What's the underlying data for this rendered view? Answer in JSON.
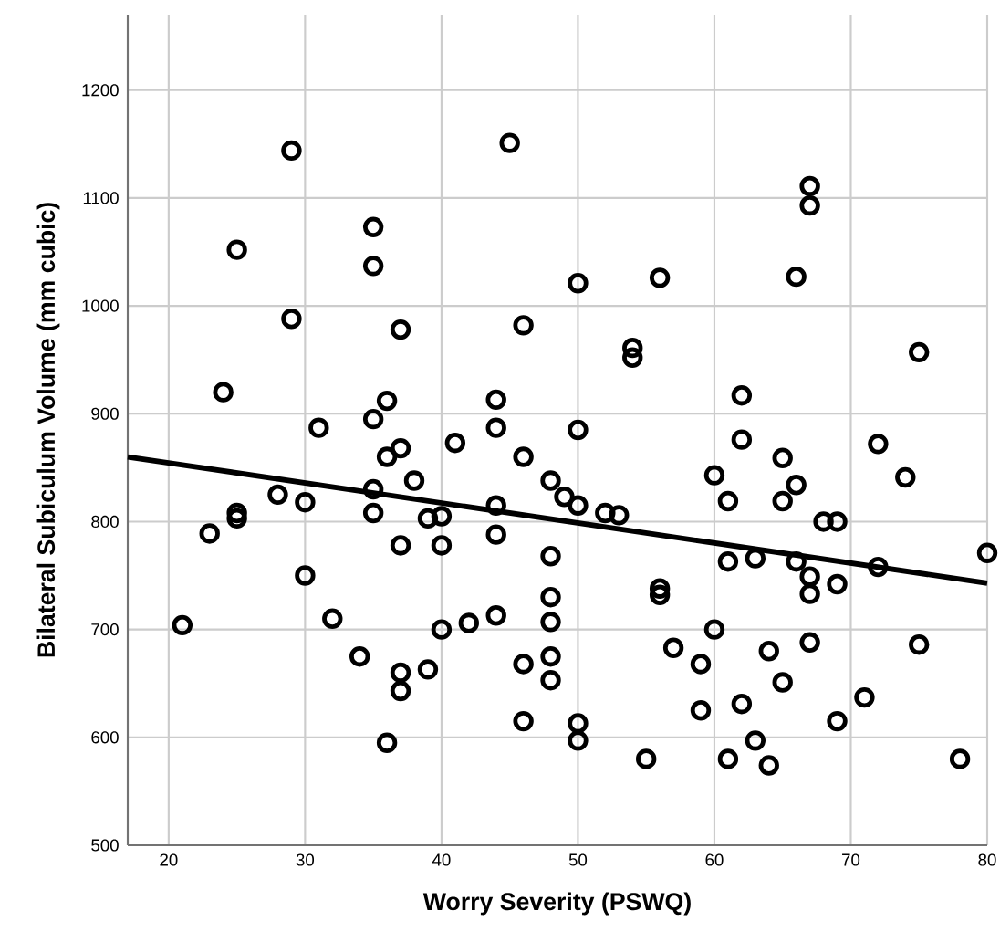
{
  "chart_data": {
    "type": "scatter",
    "xlabel": "Worry Severity (PSWQ)",
    "ylabel": "Bilateral Subiculum Volume (mm cubic)",
    "xlim": [
      17,
      80
    ],
    "ylim": [
      500,
      1270
    ],
    "xticks": [
      20,
      30,
      40,
      50,
      60,
      70,
      80
    ],
    "yticks": [
      500,
      600,
      700,
      800,
      900,
      1000,
      1100,
      1200
    ],
    "grid": true,
    "series": [
      {
        "color": "#000000",
        "marker": "circle",
        "x": [
          21,
          23,
          24,
          25,
          25,
          25,
          28,
          29,
          29,
          30,
          30,
          31,
          32,
          34,
          35,
          35,
          35,
          35,
          35,
          36,
          36,
          36,
          37,
          37,
          37,
          37,
          37,
          38,
          39,
          39,
          40,
          40,
          40,
          41,
          42,
          44,
          44,
          44,
          44,
          44,
          45,
          46,
          46,
          46,
          46,
          48,
          48,
          48,
          48,
          48,
          48,
          49,
          50,
          50,
          50,
          50,
          50,
          52,
          53,
          54,
          54,
          55,
          56,
          56,
          56,
          57,
          59,
          59,
          60,
          60,
          61,
          61,
          61,
          62,
          62,
          62,
          63,
          63,
          64,
          64,
          65,
          65,
          65,
          66,
          66,
          66,
          67,
          67,
          67,
          67,
          67,
          68,
          69,
          69,
          69,
          71,
          72,
          72,
          74,
          75,
          75,
          78,
          80
        ],
        "values": [
          704,
          789,
          920,
          1052,
          808,
          803,
          825,
          1144,
          988,
          818,
          750,
          887,
          710,
          675,
          1073,
          1037,
          895,
          830,
          808,
          912,
          860,
          595,
          978,
          868,
          778,
          660,
          643,
          838,
          663,
          803,
          805,
          778,
          700,
          873,
          706,
          913,
          887,
          815,
          788,
          713,
          1151,
          982,
          860,
          668,
          615,
          838,
          768,
          730,
          707,
          675,
          653,
          823,
          815,
          885,
          1021,
          613,
          597,
          808,
          806,
          961,
          952,
          580,
          1026,
          738,
          732,
          683,
          668,
          625,
          843,
          700,
          819,
          763,
          580,
          917,
          876,
          631,
          766,
          597,
          680,
          574,
          859,
          819,
          651,
          834,
          1027,
          763,
          1111,
          1093,
          749,
          733,
          688,
          800,
          800,
          742,
          615,
          637,
          872,
          758,
          841,
          957,
          686,
          580,
          771
        ]
      },
      {
        "type": "line",
        "color": "#000000",
        "marker": "none",
        "line_style": "solid",
        "x": [
          17,
          80
        ],
        "values": [
          860,
          743
        ]
      }
    ]
  }
}
